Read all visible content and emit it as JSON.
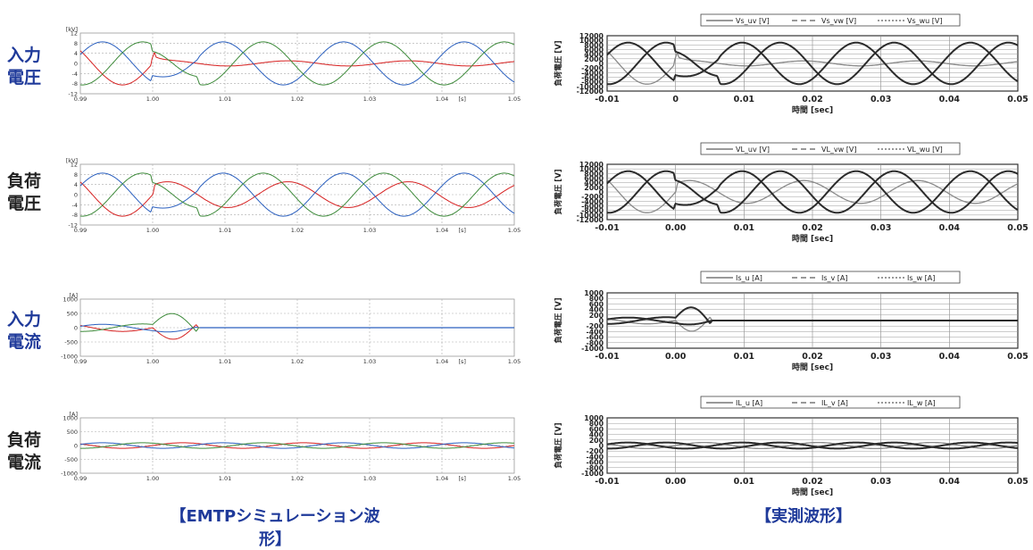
{
  "styles": {
    "label_blue": "#1f3a9a",
    "label_dark": "#222222",
    "caption_color": "#1f3a9a",
    "sim_colors": {
      "u": "#d62020",
      "v": "#2a5fbf",
      "w": "#3d8a3a"
    },
    "meas_colors": {
      "dark": "#2b2b2b",
      "light": "#8a8a8a"
    }
  },
  "row_labels": [
    {
      "line1": "入力",
      "line2": "電圧",
      "color": "blue"
    },
    {
      "line1": "負荷",
      "line2": "電圧",
      "color": "dark"
    },
    {
      "line1": "入力",
      "line2": "電流",
      "color": "blue"
    },
    {
      "line1": "負荷",
      "line2": "電流",
      "color": "dark"
    }
  ],
  "captions": {
    "left": "【EMTPシミュレーション波形】",
    "right": "【実測波形】"
  },
  "chart_data": [
    {
      "id": "sim-input-voltage",
      "type": "line",
      "unit_label": "[kV]",
      "x_unit_label": "[s]",
      "xlim": [
        0.99,
        1.05
      ],
      "ylim": [
        -12,
        12
      ],
      "x_ticks": [
        "0.99",
        "1.00",
        "1.01",
        "1.02",
        "1.03",
        "1.04",
        "1.05"
      ],
      "y_ticks": [
        "12",
        "8",
        "4",
        "0",
        "-4",
        "-8",
        "-12"
      ],
      "series": [
        {
          "phase": "u",
          "color": "red"
        },
        {
          "phase": "v",
          "color": "blue"
        },
        {
          "phase": "w",
          "color": "green"
        }
      ],
      "waveform": {
        "kind": "voltage",
        "amplitude": 8.5,
        "frequency_hz": 60,
        "event_start": 1.0,
        "event_end": 1.006,
        "sag_factor": 0.0
      }
    },
    {
      "id": "sim-load-voltage",
      "type": "line",
      "unit_label": "[kV]",
      "x_unit_label": "[s]",
      "xlim": [
        0.99,
        1.05
      ],
      "ylim": [
        -12,
        12
      ],
      "x_ticks": [
        "0.99",
        "1.00",
        "1.01",
        "1.02",
        "1.03",
        "1.04",
        "1.05"
      ],
      "y_ticks": [
        "12",
        "8",
        "4",
        "0",
        "-4",
        "-8",
        "-12"
      ],
      "series": [
        {
          "phase": "u",
          "color": "red"
        },
        {
          "phase": "v",
          "color": "blue"
        },
        {
          "phase": "w",
          "color": "green"
        }
      ],
      "waveform": {
        "kind": "voltage",
        "amplitude": 8.5,
        "frequency_hz": 60,
        "event_start": 1.0,
        "event_end": 1.006,
        "sag_factor": 0.6
      }
    },
    {
      "id": "sim-input-current",
      "type": "line",
      "unit_label": "[A]",
      "x_unit_label": "[s]",
      "xlim": [
        0.99,
        1.05
      ],
      "ylim": [
        -1000,
        1000
      ],
      "x_ticks": [
        "0.99",
        "1.00",
        "1.01",
        "1.02",
        "1.03",
        "1.04",
        "1.05"
      ],
      "y_ticks": [
        "1000",
        "500",
        "0",
        "-500",
        "-1000"
      ],
      "series": [
        {
          "phase": "u",
          "color": "red"
        },
        {
          "phase": "v",
          "color": "blue"
        },
        {
          "phase": "w",
          "color": "green"
        }
      ],
      "waveform": {
        "kind": "input_current",
        "amplitude": 130,
        "frequency_hz": 60,
        "event_start": 1.0,
        "event_end": 1.006,
        "peak": 520
      }
    },
    {
      "id": "sim-load-current",
      "type": "line",
      "unit_label": "[A]",
      "x_unit_label": "[s]",
      "xlim": [
        0.99,
        1.05
      ],
      "ylim": [
        -1000,
        1000
      ],
      "x_ticks": [
        "0.99",
        "1.00",
        "1.01",
        "1.02",
        "1.03",
        "1.04",
        "1.05"
      ],
      "y_ticks": [
        "1000",
        "500",
        "0",
        "-500",
        "-1000"
      ],
      "series": [
        {
          "phase": "u",
          "color": "red"
        },
        {
          "phase": "v",
          "color": "blue"
        },
        {
          "phase": "w",
          "color": "green"
        }
      ],
      "waveform": {
        "kind": "load_current",
        "amplitude": 100,
        "frequency_hz": 60
      }
    },
    {
      "id": "meas-input-voltage",
      "type": "line",
      "legend": [
        "Vs_uv [V]",
        "Vs_vw [V]",
        "Vs_wu [V]"
      ],
      "ylabel": "負荷電圧 [V]",
      "xlabel": "時間 [sec]",
      "xlim": [
        -0.01,
        0.05
      ],
      "ylim": [
        -12000,
        12000
      ],
      "x_ticks": [
        "-0.01",
        "0",
        "0.01",
        "0.02",
        "0.03",
        "0.04",
        "0.05"
      ],
      "y_ticks": [
        "12000",
        "10000",
        "8000",
        "6000",
        "4000",
        "2000",
        "0",
        "-2000",
        "-4000",
        "-6000",
        "-8000",
        "-10000",
        "-12000"
      ],
      "waveform": {
        "kind": "voltage",
        "amplitude": 9000,
        "frequency_hz": 60,
        "event_start": 0.0,
        "event_end": 0.006,
        "sag_factor": 0.0
      }
    },
    {
      "id": "meas-load-voltage",
      "type": "line",
      "legend": [
        "VL_uv [V]",
        "VL_vw [V]",
        "VL_wu [V]"
      ],
      "ylabel": "負荷電圧 [V]",
      "xlabel": "時間 [sec]",
      "xlim": [
        -0.01,
        0.05
      ],
      "ylim": [
        -12000,
        12000
      ],
      "x_ticks": [
        "-0.01",
        "0.00",
        "0.01",
        "0.02",
        "0.03",
        "0.04",
        "0.05"
      ],
      "y_ticks": [
        "12000",
        "10000",
        "8000",
        "6000",
        "4000",
        "2000",
        "0",
        "-2000",
        "-4000",
        "-6000",
        "-8000",
        "-10000",
        "-12000"
      ],
      "waveform": {
        "kind": "voltage",
        "amplitude": 9000,
        "frequency_hz": 60,
        "event_start": 0.0,
        "event_end": 0.006,
        "sag_factor": 0.55
      }
    },
    {
      "id": "meas-input-current",
      "type": "line",
      "legend": [
        "Is_u [A]",
        "Is_v [A]",
        "Is_w [A]"
      ],
      "ylabel": "負荷電圧 [V]",
      "xlabel": "時間 [sec]",
      "xlim": [
        -0.01,
        0.05
      ],
      "ylim": [
        -1000,
        1000
      ],
      "x_ticks": [
        "-0.01",
        "0.00",
        "0.01",
        "0.02",
        "0.03",
        "0.04",
        "0.05"
      ],
      "y_ticks": [
        "1000",
        "800",
        "600",
        "400",
        "200",
        "0",
        "-200",
        "-400",
        "-600",
        "-800",
        "-1000"
      ],
      "waveform": {
        "kind": "input_current",
        "amplitude": 120,
        "frequency_hz": 60,
        "event_start": 0.0,
        "event_end": 0.005,
        "peak": 480
      }
    },
    {
      "id": "meas-load-current",
      "type": "line",
      "legend": [
        "IL_u [A]",
        "IL_v [A]",
        "IL_w [A]"
      ],
      "ylabel": "負荷電圧 [V]",
      "xlabel": "時間 [sec]",
      "xlim": [
        -0.01,
        0.05
      ],
      "ylim": [
        -1000,
        1000
      ],
      "x_ticks": [
        "-0.01",
        "0.00",
        "0.01",
        "0.02",
        "0.03",
        "0.04",
        "0.05"
      ],
      "y_ticks": [
        "1000",
        "800",
        "600",
        "400",
        "200",
        "0",
        "-200",
        "-400",
        "-600",
        "-800",
        "-1000"
      ],
      "waveform": {
        "kind": "load_current",
        "amplitude": 110,
        "frequency_hz": 60
      }
    }
  ]
}
